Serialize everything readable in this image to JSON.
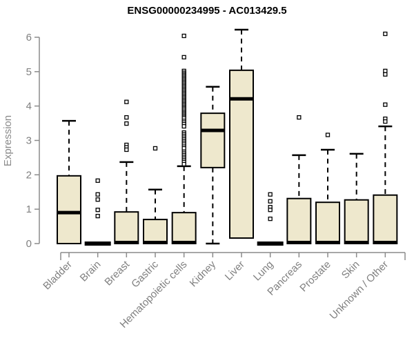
{
  "chart_data": {
    "type": "boxplot",
    "title": "ENSG00000234995 - AC013429.5",
    "ylabel": "Expression",
    "xlabel": "",
    "ylim": [
      0,
      6
    ],
    "yticks": [
      0,
      1,
      2,
      3,
      4,
      5,
      6
    ],
    "grid": false,
    "legend": "none",
    "colors": {
      "box_fill": "#EEE8CD",
      "box_stroke": "#000000",
      "median": "#000000",
      "whisker": "#000000",
      "outlier_stroke": "#000000",
      "outlier_fill": "#ffffff",
      "axis": "#8a8a8a",
      "tick_text": "#808080",
      "title": "#000000",
      "background": "#ffffff"
    },
    "categories": [
      "Bladder",
      "Brain",
      "Breast",
      "Gastric",
      "Hematopoietic cells",
      "Kidney",
      "Liver",
      "Lung",
      "Pancreas",
      "Prostate",
      "Skin",
      "Unknown / Other"
    ],
    "series": [
      {
        "name": "Bladder",
        "whisker_low": 0,
        "q1": 0,
        "median": 0.9,
        "q3": 1.97,
        "whisker_high": 3.57,
        "outliers": []
      },
      {
        "name": "Brain",
        "whisker_low": 0,
        "q1": 0,
        "median": 0,
        "q3": 0,
        "whisker_high": 0,
        "outliers": [
          1.83,
          1.43,
          1.28,
          0.98,
          0.8
        ]
      },
      {
        "name": "Breast",
        "whisker_low": 0,
        "q1": 0,
        "median": 0.03,
        "q3": 0.92,
        "whisker_high": 2.37,
        "outliers": [
          4.12,
          3.67,
          3.49,
          2.87,
          2.8,
          2.73
        ]
      },
      {
        "name": "Gastric",
        "whisker_low": 0,
        "q1": 0,
        "median": 0.03,
        "q3": 0.7,
        "whisker_high": 1.57,
        "outliers": [
          2.77
        ]
      },
      {
        "name": "Hematopoietic cells",
        "whisker_low": 0,
        "q1": 0,
        "median": 0.03,
        "q3": 0.9,
        "whisker_high": 2.25,
        "outliers": [
          6.04,
          5.42,
          5.02,
          4.97,
          4.93,
          4.89,
          4.85,
          4.81,
          4.77,
          4.73,
          4.69,
          4.65,
          4.61,
          4.57,
          4.53,
          4.49,
          4.45,
          4.41,
          4.37,
          4.33,
          4.29,
          4.25,
          4.21,
          4.17,
          4.13,
          4.09,
          4.05,
          4.01,
          3.97,
          3.93,
          3.89,
          3.84,
          3.8,
          3.76,
          3.72,
          3.68,
          3.64,
          3.57,
          3.52,
          3.47,
          3.41,
          3.23,
          3.18,
          3.13,
          3.08,
          3.03,
          2.98,
          2.93,
          2.88,
          2.82,
          2.77,
          2.67,
          2.62,
          2.57,
          2.52,
          2.47,
          2.42,
          2.37,
          2.31
        ]
      },
      {
        "name": "Kidney",
        "whisker_low": 0,
        "q1": 2.21,
        "median": 3.29,
        "q3": 3.79,
        "whisker_high": 4.56,
        "outliers": []
      },
      {
        "name": "Liver",
        "whisker_low": 0.16,
        "q1": 0.16,
        "median": 4.21,
        "q3": 5.04,
        "whisker_high": 6.22,
        "outliers": []
      },
      {
        "name": "Lung",
        "whisker_low": 0,
        "q1": 0,
        "median": 0,
        "q3": 0,
        "whisker_high": 0,
        "outliers": [
          1.43,
          1.23,
          1.06,
          0.98,
          0.72
        ]
      },
      {
        "name": "Pancreas",
        "whisker_low": 0,
        "q1": 0,
        "median": 0.03,
        "q3": 1.31,
        "whisker_high": 2.57,
        "outliers": [
          3.67
        ]
      },
      {
        "name": "Prostate",
        "whisker_low": 0,
        "q1": 0,
        "median": 0.03,
        "q3": 1.2,
        "whisker_high": 2.73,
        "outliers": [
          3.16
        ]
      },
      {
        "name": "Skin",
        "whisker_low": 0,
        "q1": 0,
        "median": 0.03,
        "q3": 1.27,
        "whisker_high": 2.61,
        "outliers": []
      },
      {
        "name": "Unknown / Other",
        "whisker_low": 0,
        "q1": 0,
        "median": 0.03,
        "q3": 1.41,
        "whisker_high": 3.41,
        "outliers": [
          6.1,
          5.02,
          4.92,
          4.04,
          3.63,
          3.55
        ]
      }
    ]
  }
}
